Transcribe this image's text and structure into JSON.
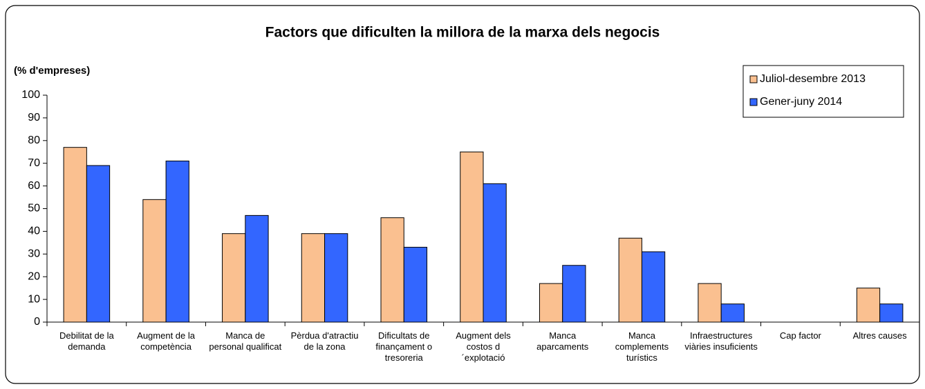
{
  "chart_data": {
    "type": "bar",
    "title": "Factors que dificulten la millora de la marxa dels negocis",
    "y_label": "(% d'empreses)",
    "categories": [
      "Debilitat de la demanda",
      "Augment de la competència",
      "Manca de personal qualificat",
      "Pèrdua d'atractiu de la zona",
      "Dificultats de finançament o tresoreria",
      "Augment dels costos d´explotació",
      "Manca aparcaments",
      "Manca complements turístics",
      "Infraestructures viàries insuficients",
      "Cap factor",
      "Altres causes"
    ],
    "series": [
      {
        "name": "Juliol-desembre 2013",
        "color": "#fac090",
        "values": [
          77,
          54,
          39,
          39,
          46,
          75,
          17,
          37,
          17,
          0,
          15
        ]
      },
      {
        "name": "Gener-juny 2014",
        "color": "#3366ff",
        "values": [
          69,
          71,
          47,
          39,
          33,
          61,
          25,
          31,
          8,
          0,
          8
        ]
      }
    ],
    "ylim": [
      0,
      100
    ],
    "yticks": [
      0,
      10,
      20,
      30,
      40,
      50,
      60,
      70,
      80,
      90,
      100
    ],
    "grid": false,
    "legend": "top-right"
  }
}
